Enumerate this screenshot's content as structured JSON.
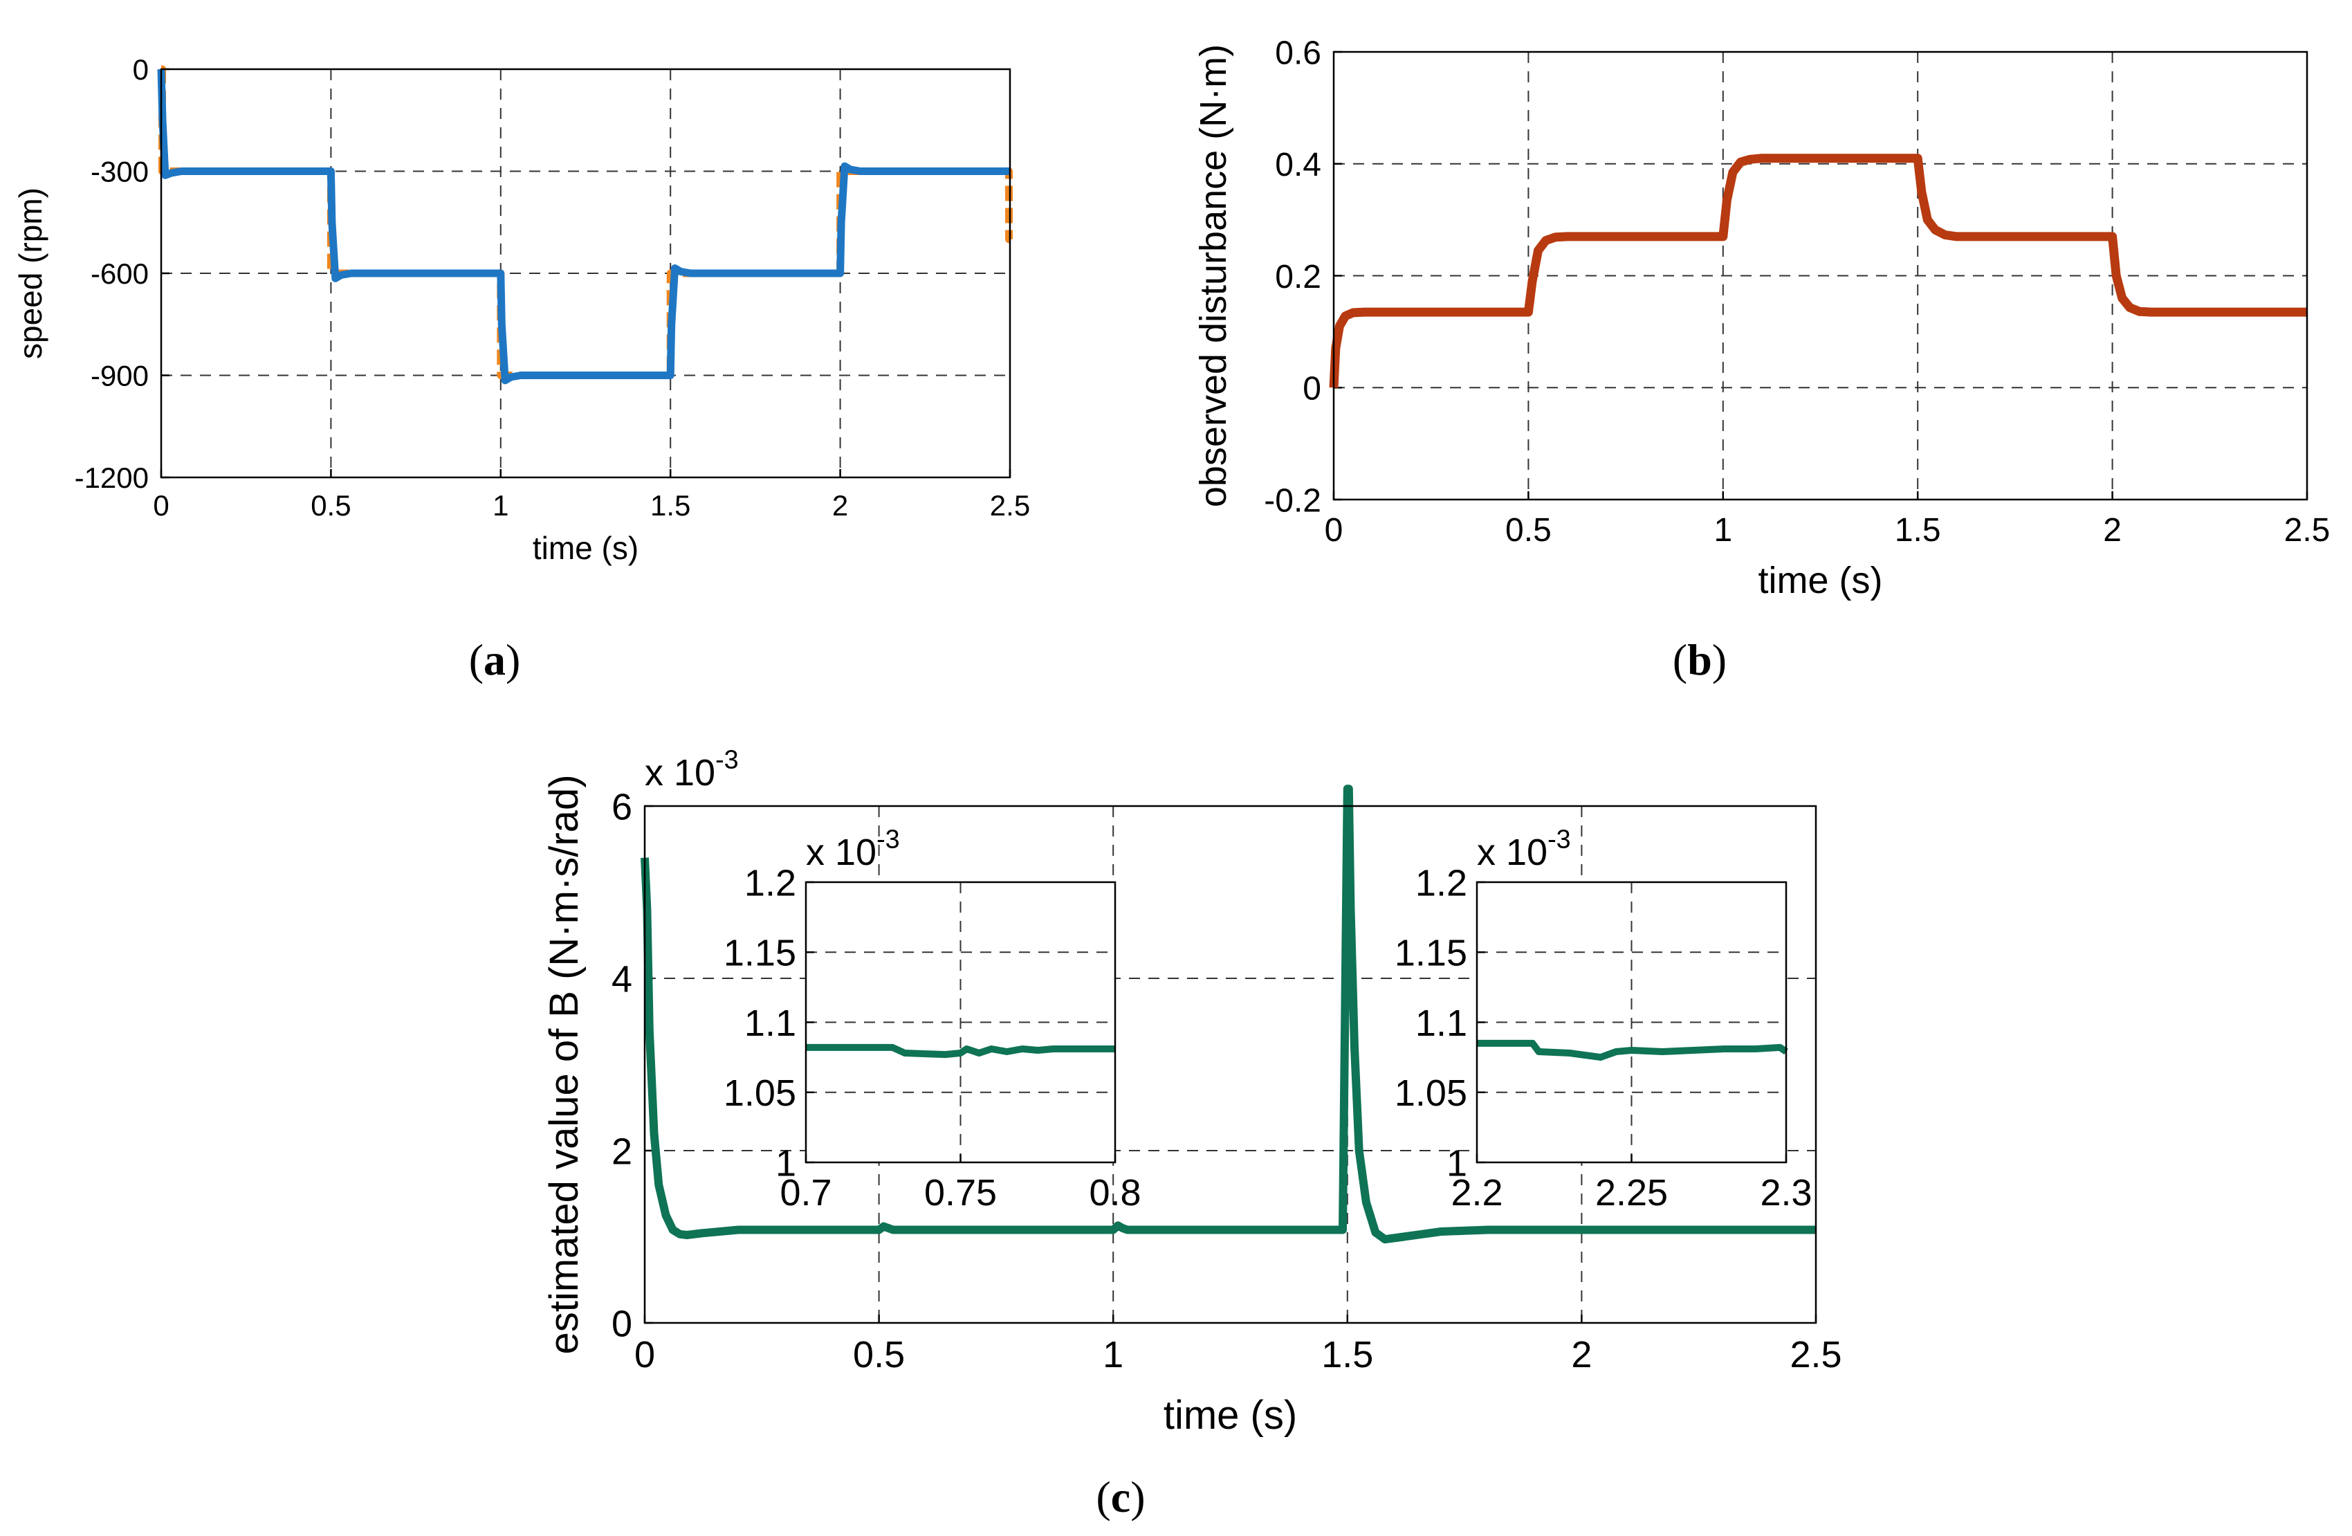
{
  "chart_data": [
    {
      "id": "a",
      "type": "line",
      "panel_label": "a",
      "xlabel": "time (s)",
      "ylabel": "speed (rpm)",
      "xlim": [
        0,
        2.5
      ],
      "ylim": [
        -1200,
        0
      ],
      "xticks": [
        0,
        0.5,
        1,
        1.5,
        2,
        2.5
      ],
      "xtick_labels": [
        "0",
        "0.5",
        "1",
        "1.5",
        "2",
        "2.5"
      ],
      "yticks": [
        0,
        -300,
        -600,
        -900,
        -1200
      ],
      "ytick_labels": [
        "0",
        "-300",
        "-600",
        "-900",
        "-1200"
      ],
      "grid": true,
      "series": [
        {
          "color": "#f0861e",
          "dashed": true,
          "x": [
            0,
            0.003,
            0.003,
            0.5,
            0.5,
            1.0,
            1.0,
            1.5,
            1.5,
            2.0,
            2.0,
            2.497,
            2.497,
            2.5
          ],
          "y": [
            0,
            0,
            -300,
            -300,
            -600,
            -600,
            -900,
            -900,
            -600,
            -600,
            -300,
            -300,
            -500,
            -500
          ]
        },
        {
          "color": "#1f77c4",
          "dashed": false,
          "x": [
            0,
            0.004,
            0.012,
            0.03,
            0.06,
            0.5,
            0.503,
            0.513,
            0.53,
            0.56,
            1.0,
            1.003,
            1.013,
            1.03,
            1.06,
            1.5,
            1.503,
            1.513,
            1.53,
            1.56,
            2.0,
            2.003,
            2.013,
            2.03,
            2.06,
            2.5
          ],
          "y": [
            0,
            -150,
            -312,
            -305,
            -300,
            -300,
            -450,
            -615,
            -605,
            -600,
            -600,
            -750,
            -915,
            -905,
            -900,
            -900,
            -750,
            -585,
            -595,
            -600,
            -600,
            -450,
            -285,
            -295,
            -300,
            -300
          ]
        }
      ]
    },
    {
      "id": "b",
      "type": "line",
      "panel_label": "b",
      "xlabel": "time (s)",
      "ylabel": "observed disturbance (N·m)",
      "xlim": [
        0,
        2.5
      ],
      "ylim": [
        -0.2,
        0.6
      ],
      "xticks": [
        0,
        0.5,
        1,
        1.5,
        2,
        2.5
      ],
      "xtick_labels": [
        "0",
        "0.5",
        "1",
        "1.5",
        "2",
        "2.5"
      ],
      "yticks": [
        -0.2,
        0,
        0.2,
        0.4,
        0.6
      ],
      "ytick_labels": [
        "-0.2",
        "0",
        "0.2",
        "0.4",
        "0.6"
      ],
      "grid": true,
      "series": [
        {
          "color": "#b83a10",
          "dashed": false,
          "x": [
            0,
            0.005,
            0.015,
            0.03,
            0.05,
            0.08,
            0.5,
            0.51,
            0.525,
            0.545,
            0.57,
            0.6,
            1.0,
            1.01,
            1.025,
            1.045,
            1.07,
            1.1,
            1.5,
            1.51,
            1.525,
            1.545,
            1.57,
            1.6,
            2.0,
            2.01,
            2.025,
            2.045,
            2.07,
            2.1,
            2.5
          ],
          "y": [
            0,
            0.07,
            0.11,
            0.128,
            0.134,
            0.135,
            0.135,
            0.19,
            0.245,
            0.263,
            0.269,
            0.27,
            0.27,
            0.335,
            0.385,
            0.403,
            0.408,
            0.41,
            0.41,
            0.35,
            0.3,
            0.282,
            0.273,
            0.27,
            0.27,
            0.2,
            0.16,
            0.143,
            0.136,
            0.135,
            0.135
          ]
        }
      ]
    },
    {
      "id": "c",
      "type": "line",
      "panel_label": "c",
      "xlabel": "time (s)",
      "ylabel": "estimated value of B (N·m·s/rad)",
      "scale_note": "x 10",
      "scale_exp": "-3",
      "xlim": [
        0,
        2.5
      ],
      "ylim": [
        0,
        6
      ],
      "xticks": [
        0,
        0.5,
        1,
        1.5,
        2,
        2.5
      ],
      "xtick_labels": [
        "0",
        "0.5",
        "1",
        "1.5",
        "2",
        "2.5"
      ],
      "yticks": [
        0,
        2,
        4,
        6
      ],
      "ytick_labels": [
        "0",
        "2",
        "4",
        "6"
      ],
      "grid": true,
      "series": [
        {
          "color": "#0f7355",
          "dashed": false,
          "x": [
            0,
            0.005,
            0.01,
            0.02,
            0.03,
            0.045,
            0.06,
            0.075,
            0.09,
            0.12,
            0.2,
            0.5,
            0.51,
            0.52,
            0.53,
            0.55,
            1.0,
            1.01,
            1.02,
            1.03,
            1.05,
            1.49,
            1.5,
            1.503,
            1.507,
            1.515,
            1.525,
            1.54,
            1.56,
            1.58,
            1.62,
            1.7,
            1.8,
            2.5
          ],
          "y": [
            5.4,
            4.8,
            3.4,
            2.2,
            1.6,
            1.25,
            1.08,
            1.03,
            1.02,
            1.04,
            1.08,
            1.08,
            1.12,
            1.1,
            1.08,
            1.08,
            1.08,
            1.13,
            1.1,
            1.08,
            1.08,
            1.08,
            6.2,
            6.2,
            4.8,
            3.2,
            2.0,
            1.4,
            1.05,
            0.97,
            1.0,
            1.06,
            1.08,
            1.08
          ]
        }
      ],
      "insets": [
        {
          "scale_note": "x 10",
          "scale_exp": "-3",
          "xlim": [
            0.7,
            0.8
          ],
          "ylim": [
            1.0,
            1.2
          ],
          "xticks": [
            0.7,
            0.75,
            0.8
          ],
          "xtick_labels": [
            "0.7",
            "0.75",
            "0.8"
          ],
          "yticks": [
            1,
            1.05,
            1.1,
            1.15,
            1.2
          ],
          "ytick_labels": [
            "1",
            "1.05",
            "1.1",
            "1.15",
            "1.2"
          ],
          "grid": true,
          "series": [
            {
              "color": "#0f7355",
              "x": [
                0.7,
                0.728,
                0.732,
                0.745,
                0.75,
                0.752,
                0.756,
                0.76,
                0.765,
                0.77,
                0.775,
                0.78,
                0.8
              ],
              "y": [
                1.082,
                1.082,
                1.078,
                1.077,
                1.078,
                1.081,
                1.078,
                1.081,
                1.079,
                1.081,
                1.08,
                1.081,
                1.081
              ]
            }
          ]
        },
        {
          "scale_note": "x 10",
          "scale_exp": "-3",
          "xlim": [
            2.2,
            2.3
          ],
          "ylim": [
            1.0,
            1.2
          ],
          "xticks": [
            2.2,
            2.25,
            2.3
          ],
          "xtick_labels": [
            "2.2",
            "2.25",
            "2.3"
          ],
          "yticks": [
            1,
            1.05,
            1.1,
            1.15,
            1.2
          ],
          "ytick_labels": [
            "1",
            "1.05",
            "1.1",
            "1.15",
            "1.2"
          ],
          "grid": true,
          "series": [
            {
              "color": "#0f7355",
              "x": [
                2.2,
                2.218,
                2.22,
                2.23,
                2.24,
                2.245,
                2.25,
                2.26,
                2.27,
                2.28,
                2.29,
                2.298,
                2.3
              ],
              "y": [
                1.085,
                1.085,
                1.079,
                1.078,
                1.075,
                1.079,
                1.08,
                1.079,
                1.08,
                1.081,
                1.081,
                1.082,
                1.079
              ]
            }
          ]
        }
      ]
    }
  ]
}
